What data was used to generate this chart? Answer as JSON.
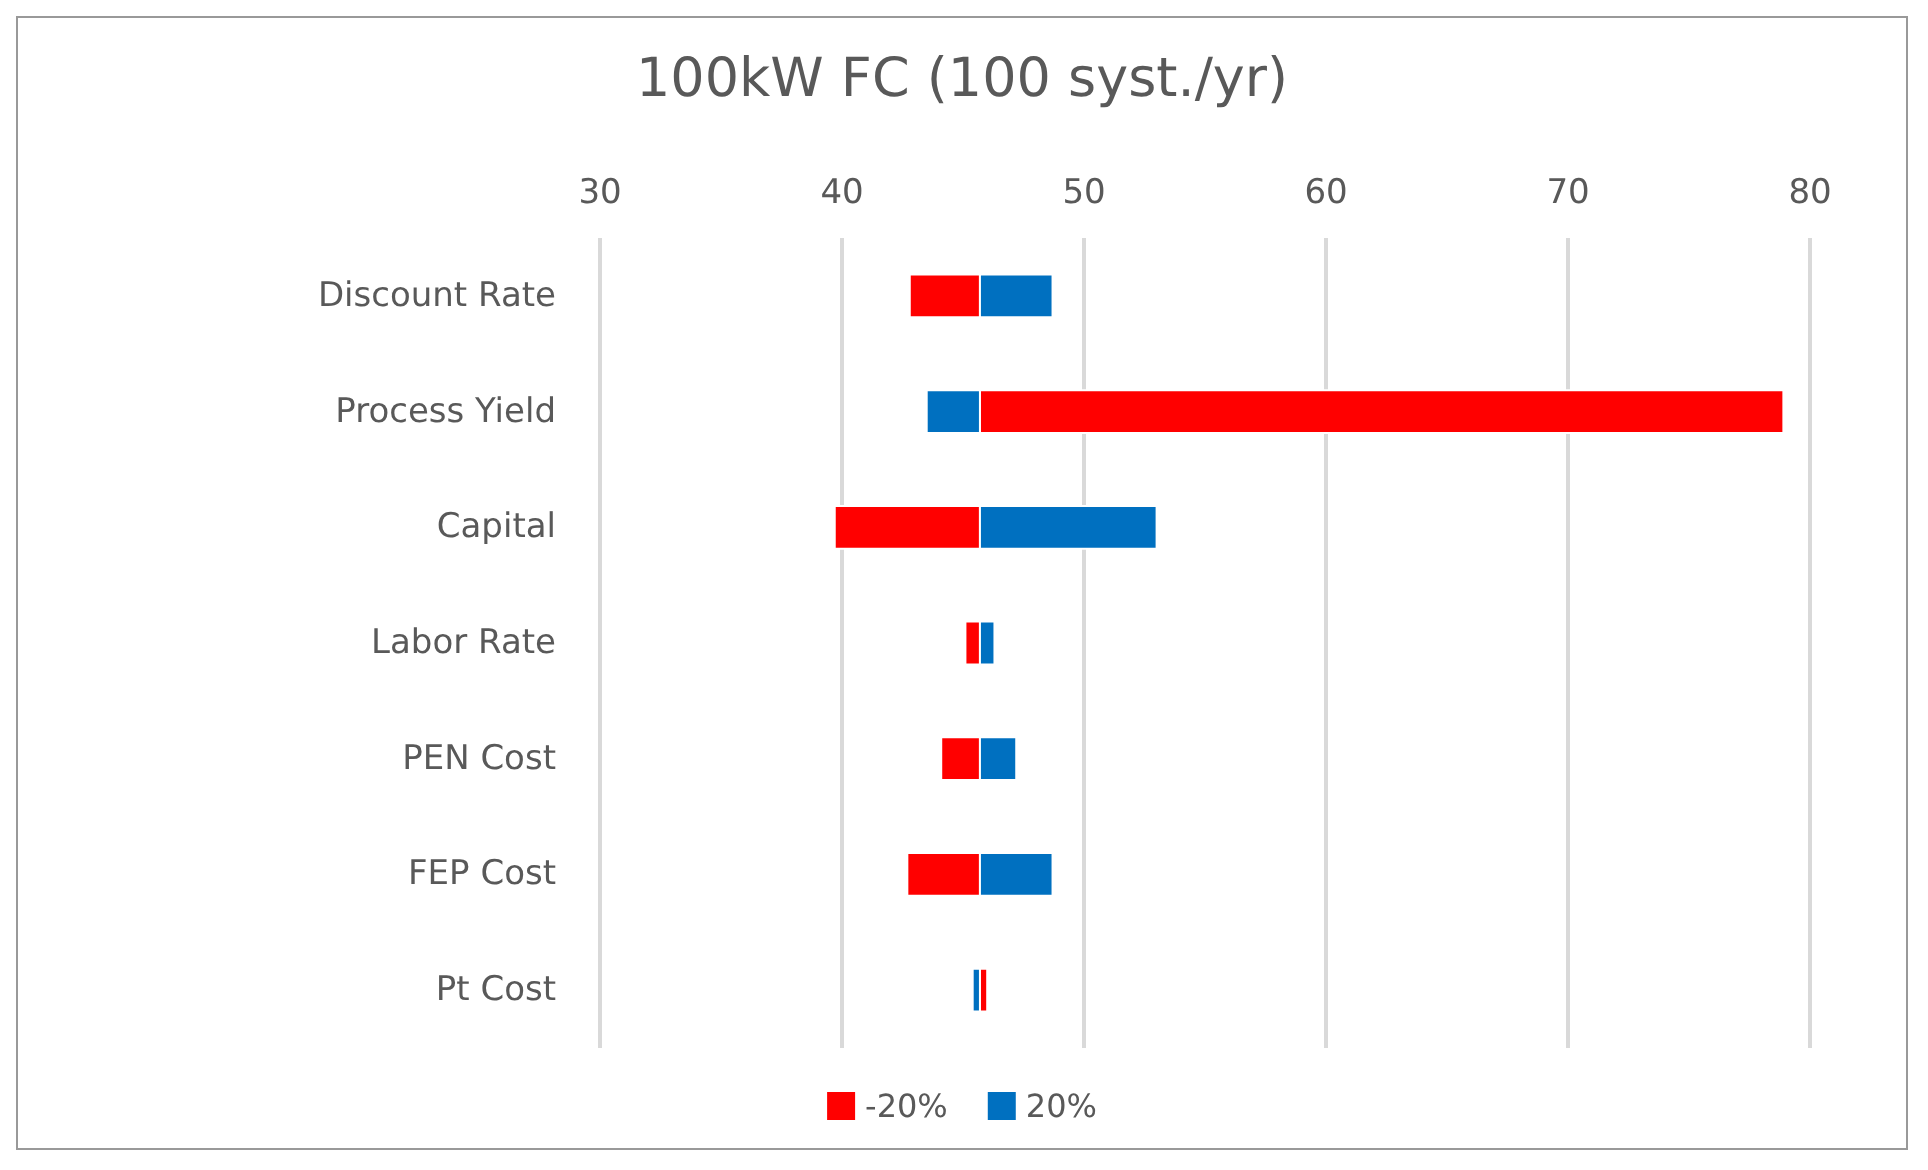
{
  "chart_data": {
    "type": "bar",
    "orientation": "horizontal",
    "title": "100kW FC (100 syst./yr)",
    "categories": [
      "Discount Rate",
      "Process Yield",
      "Capital",
      "Labor Rate",
      "PEN Cost",
      "FEP Cost",
      "Pt Cost"
    ],
    "series": [
      {
        "name": "-20%",
        "color": "#ff0000",
        "base": [
          42.8,
          45.7,
          39.7,
          45.1,
          44.1,
          42.7,
          45.7
        ],
        "values": [
          2.9,
          33.2,
          6.0,
          0.6,
          1.6,
          3.0,
          0.3
        ]
      },
      {
        "name": "20%",
        "color": "#0070c0",
        "base": [
          45.7,
          43.5,
          45.7,
          45.7,
          45.7,
          45.7,
          45.4
        ],
        "values": [
          3.0,
          2.2,
          7.3,
          0.6,
          1.5,
          3.0,
          0.3
        ]
      }
    ],
    "xlim": [
      30,
      80
    ],
    "xticks": [
      30,
      40,
      50,
      60,
      70,
      80
    ],
    "grid": "x",
    "legend": "bottom"
  }
}
